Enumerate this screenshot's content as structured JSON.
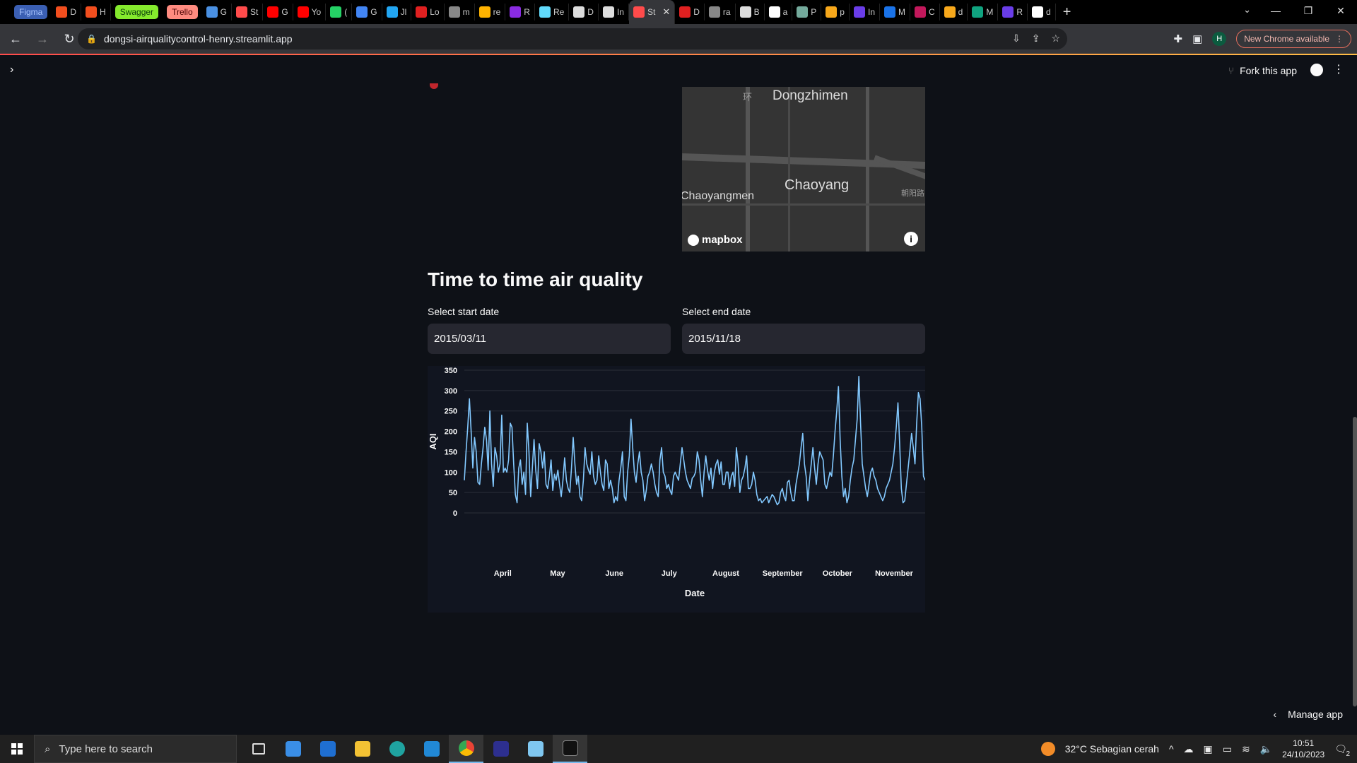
{
  "browser": {
    "tabs": [
      {
        "label": "Figma",
        "style": "pill",
        "color": "#a7c3ff",
        "bg": "#3b5fb3"
      },
      {
        "label": "D",
        "fav": "#f24e1e"
      },
      {
        "label": "H",
        "fav": "#f24e1e"
      },
      {
        "label": "Swagger",
        "style": "pill",
        "color": "#0b3d0b",
        "bg": "#85ea2d"
      },
      {
        "label": "Trello",
        "style": "pill",
        "color": "#4a0000",
        "bg": "#ff8b80"
      },
      {
        "label": "G",
        "fav": "#4a90e2"
      },
      {
        "label": "St",
        "fav": "#ff4b4b"
      },
      {
        "label": "G",
        "fav": "#ff0000"
      },
      {
        "label": "Yo",
        "fav": "#ff0000"
      },
      {
        "label": "(",
        "fav": "#25d366"
      },
      {
        "label": "G",
        "fav": "#4285f4"
      },
      {
        "label": "Jl",
        "fav": "#22a6f2"
      },
      {
        "label": "Lo",
        "fav": "#e02020"
      },
      {
        "label": "m",
        "fav": "#888888"
      },
      {
        "label": "re",
        "fav": "#ffb300"
      },
      {
        "label": "R",
        "fav": "#8a2be2"
      },
      {
        "label": "Re",
        "fav": "#61dafb"
      },
      {
        "label": "D",
        "fav": "#dddddd"
      },
      {
        "label": "In",
        "fav": "#dddddd"
      },
      {
        "label": "St",
        "fav": "#ff4b4b",
        "active": true
      },
      {
        "label": "D",
        "fav": "#e02020"
      },
      {
        "label": "ra",
        "fav": "#888888"
      },
      {
        "label": "B",
        "fav": "#dddddd"
      },
      {
        "label": "a",
        "fav": "#ffffff"
      },
      {
        "label": "P",
        "fav": "#74aa9c"
      },
      {
        "label": "p",
        "fav": "#f7a81b"
      },
      {
        "label": "In",
        "fav": "#6a3de8"
      },
      {
        "label": "M",
        "fav": "#1a73e8"
      },
      {
        "label": "C",
        "fav": "#c2185b"
      },
      {
        "label": "d",
        "fav": "#f7a81b"
      },
      {
        "label": "M",
        "fav": "#10a37f"
      },
      {
        "label": "R",
        "fav": "#6a3de8"
      },
      {
        "label": "d",
        "fav": "#ffffff"
      }
    ],
    "url": "dongsi-airqualitycontrol-henry.streamlit.app",
    "profile_initial": "H",
    "new_chrome_label": "New Chrome available"
  },
  "app": {
    "fork_label": "Fork this app",
    "manage_label": "Manage app",
    "map": {
      "labels": [
        "Dongzhimen",
        "Chaoyang",
        "Chaoyangmen",
        "环",
        "朝阳路"
      ],
      "attribution": "mapbox"
    },
    "section_title": "Time to time air quality",
    "start_date_label": "Select start date",
    "start_date_value": "2015/03/11",
    "end_date_label": "Select end date",
    "end_date_value": "2015/11/18"
  },
  "chart_data": {
    "type": "line",
    "xlabel": "Date",
    "ylabel": "AQI",
    "x_range": [
      "2015-03-11",
      "2015-11-18"
    ],
    "ylim": [
      0,
      350
    ],
    "yticks": [
      0,
      50,
      100,
      150,
      200,
      250,
      300,
      350
    ],
    "xticks": [
      {
        "label": "April",
        "date": "2015-04-01"
      },
      {
        "label": "May",
        "date": "2015-05-01"
      },
      {
        "label": "June",
        "date": "2015-06-01"
      },
      {
        "label": "July",
        "date": "2015-07-01"
      },
      {
        "label": "August",
        "date": "2015-08-01"
      },
      {
        "label": "September",
        "date": "2015-09-01"
      },
      {
        "label": "October",
        "date": "2015-10-01"
      },
      {
        "label": "November",
        "date": "2015-11-01"
      }
    ],
    "color": "#83c9ff",
    "grid": true,
    "series": [
      {
        "values": [
          80,
          150,
          210,
          280,
          200,
          110,
          185,
          150,
          75,
          70,
          120,
          160,
          210,
          180,
          105,
          250,
          120,
          65,
          160,
          140,
          100,
          120,
          240,
          100,
          110,
          100,
          130,
          220,
          210,
          120,
          45,
          25,
          110,
          130,
          70,
          100,
          45,
          220,
          150,
          40,
          110,
          180,
          105,
          60,
          170,
          150,
          110,
          150,
          70,
          60,
          90,
          130,
          55,
          95,
          80,
          105,
          70,
          40,
          80,
          135,
          80,
          60,
          50,
          110,
          185,
          120,
          70,
          90,
          40,
          30,
          80,
          160,
          120,
          105,
          95,
          150,
          90,
          70,
          80,
          140,
          100,
          70,
          55,
          130,
          120,
          60,
          80,
          60,
          25,
          40,
          30,
          80,
          110,
          150,
          40,
          30,
          100,
          140,
          230,
          160,
          100,
          75,
          120,
          150,
          100,
          80,
          30,
          55,
          90,
          100,
          120,
          100,
          70,
          50,
          40,
          130,
          160,
          100,
          90,
          60,
          70,
          55,
          45,
          90,
          100,
          90,
          80,
          120,
          160,
          130,
          100,
          80,
          70,
          60,
          85,
          90,
          100,
          150,
          130,
          80,
          40,
          100,
          140,
          105,
          80,
          110,
          60,
          100,
          120,
          130,
          95,
          125,
          70,
          70,
          100,
          100,
          60,
          90,
          100,
          65,
          160,
          120,
          50,
          80,
          90,
          110,
          140,
          60,
          60,
          70,
          100,
          80,
          45,
          30,
          35,
          25,
          30,
          35,
          40,
          25,
          35,
          45,
          40,
          30,
          20,
          25,
          50,
          60,
          40,
          30,
          75,
          80,
          50,
          30,
          30,
          70,
          95,
          120,
          160,
          195,
          120,
          90,
          30,
          80,
          120,
          160,
          110,
          70,
          120,
          150,
          140,
          130,
          70,
          60,
          80,
          100,
          90,
          140,
          200,
          250,
          310,
          180,
          90,
          40,
          60,
          25,
          40,
          80,
          110,
          130,
          180,
          230,
          335,
          220,
          120,
          90,
          60,
          40,
          70,
          100,
          110,
          90,
          80,
          60,
          50,
          40,
          30,
          40,
          60,
          70,
          80,
          100,
          120,
          160,
          210,
          270,
          170,
          60,
          25,
          30,
          70,
          110,
          150,
          195,
          160,
          120,
          220,
          295,
          280,
          210,
          90,
          80
        ]
      }
    ]
  },
  "taskbar": {
    "search_placeholder": "Type here to search",
    "weather": "32°C  Sebagian cerah",
    "time": "10:51",
    "date": "24/10/2023",
    "notification_count": "2"
  }
}
